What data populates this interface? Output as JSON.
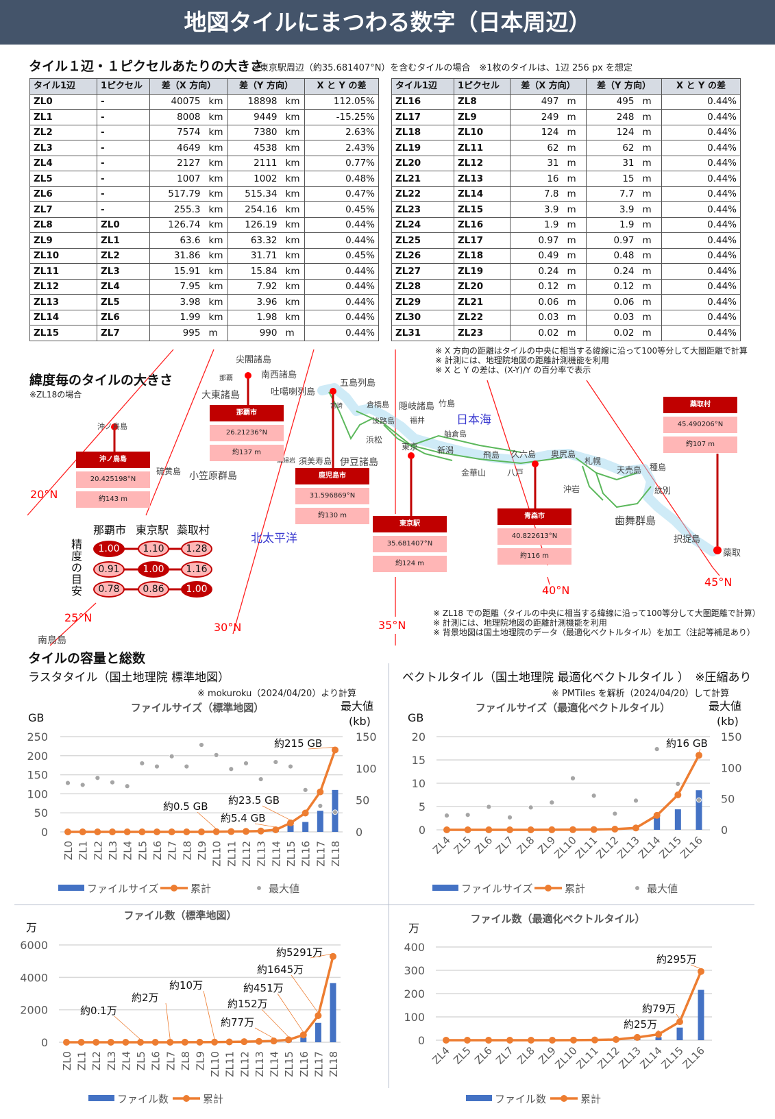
{
  "header": {
    "title": "地図タイルにまつわる数字（日本周辺）"
  },
  "tables": {
    "title": "タイル１辺・１ピクセルあたりの大きさ",
    "note": "※東京駅周辺（約35.681407°N）を含むタイルの場合　※1枚のタイルは、1辺 256 px を想定",
    "headers": [
      "タイル1辺",
      "1ピクセル",
      "差（X 方向）",
      "差（Y 方向）",
      "X と Y の差"
    ],
    "left_rows": [
      [
        "ZL0",
        "-",
        "40075",
        "km",
        "18898",
        "km",
        "112.05%"
      ],
      [
        "ZL1",
        "-",
        "8008",
        "km",
        "9449",
        "km",
        "-15.25%"
      ],
      [
        "ZL2",
        "-",
        "7574",
        "km",
        "7380",
        "km",
        "2.63%"
      ],
      [
        "ZL3",
        "-",
        "4649",
        "km",
        "4538",
        "km",
        "2.43%"
      ],
      [
        "ZL4",
        "-",
        "2127",
        "km",
        "2111",
        "km",
        "0.77%"
      ],
      [
        "ZL5",
        "-",
        "1007",
        "km",
        "1002",
        "km",
        "0.48%"
      ],
      [
        "ZL6",
        "-",
        "517.79",
        "km",
        "515.34",
        "km",
        "0.47%"
      ],
      [
        "ZL7",
        "-",
        "255.3",
        "km",
        "254.16",
        "km",
        "0.45%"
      ],
      [
        "ZL8",
        "ZL0",
        "126.74",
        "km",
        "126.19",
        "km",
        "0.44%"
      ],
      [
        "ZL9",
        "ZL1",
        "63.6",
        "km",
        "63.32",
        "km",
        "0.44%"
      ],
      [
        "ZL10",
        "ZL2",
        "31.86",
        "km",
        "31.71",
        "km",
        "0.45%"
      ],
      [
        "ZL11",
        "ZL3",
        "15.91",
        "km",
        "15.84",
        "km",
        "0.44%"
      ],
      [
        "ZL12",
        "ZL4",
        "7.95",
        "km",
        "7.92",
        "km",
        "0.44%"
      ],
      [
        "ZL13",
        "ZL5",
        "3.98",
        "km",
        "3.96",
        "km",
        "0.44%"
      ],
      [
        "ZL14",
        "ZL6",
        "1.99",
        "km",
        "1.98",
        "km",
        "0.44%"
      ],
      [
        "ZL15",
        "ZL7",
        "995",
        "m",
        "990",
        "m",
        "0.44%"
      ]
    ],
    "right_rows": [
      [
        "ZL16",
        "ZL8",
        "497",
        "m",
        "495",
        "m",
        "0.44%"
      ],
      [
        "ZL17",
        "ZL9",
        "249",
        "m",
        "248",
        "m",
        "0.44%"
      ],
      [
        "ZL18",
        "ZL10",
        "124",
        "m",
        "124",
        "m",
        "0.44%"
      ],
      [
        "ZL19",
        "ZL11",
        "62",
        "m",
        "62",
        "m",
        "0.44%"
      ],
      [
        "ZL20",
        "ZL12",
        "31",
        "m",
        "31",
        "m",
        "0.44%"
      ],
      [
        "ZL21",
        "ZL13",
        "16",
        "m",
        "15",
        "m",
        "0.44%"
      ],
      [
        "ZL22",
        "ZL14",
        "7.8",
        "m",
        "7.7",
        "m",
        "0.44%"
      ],
      [
        "ZL23",
        "ZL15",
        "3.9",
        "m",
        "3.9",
        "m",
        "0.44%"
      ],
      [
        "ZL24",
        "ZL16",
        "1.9",
        "m",
        "1.9",
        "m",
        "0.44%"
      ],
      [
        "ZL25",
        "ZL17",
        "0.97",
        "m",
        "0.97",
        "m",
        "0.44%"
      ],
      [
        "ZL26",
        "ZL18",
        "0.49",
        "m",
        "0.48",
        "m",
        "0.44%"
      ],
      [
        "ZL27",
        "ZL19",
        "0.24",
        "m",
        "0.24",
        "m",
        "0.44%"
      ],
      [
        "ZL28",
        "ZL20",
        "0.12",
        "m",
        "0.12",
        "m",
        "0.44%"
      ],
      [
        "ZL29",
        "ZL21",
        "0.06",
        "m",
        "0.06",
        "m",
        "0.44%"
      ],
      [
        "ZL30",
        "ZL22",
        "0.03",
        "m",
        "0.03",
        "m",
        "0.44%"
      ],
      [
        "ZL31",
        "ZL23",
        "0.02",
        "m",
        "0.02",
        "m",
        "0.44%"
      ]
    ],
    "notes": [
      "※ X 方向の距離はタイルの中央に相当する緯線に沿って100等分して大圏距離で計算",
      "※ 計測には、地理院地図の距離計測機能を利用",
      "※ X と Y の差は、(X-Y)/Y の百分率で表示"
    ]
  },
  "map": {
    "title": "緯度毎のタイルの大きさ",
    "note": "※ZL18の場合",
    "lat_labels": [
      "20°N",
      "25°N",
      "30°N",
      "35°N",
      "40°N",
      "45°N"
    ],
    "cities": [
      {
        "name": "沖ノ鳥島",
        "lat": "20.425198°N",
        "size": "約143 m"
      },
      {
        "name": "那覇市",
        "lat": "26.21236°N",
        "size": "約137 m"
      },
      {
        "name": "鹿児島市",
        "lat": "31.596869°N",
        "size": "約130 m"
      },
      {
        "name": "東京駅",
        "lat": "35.681407°N",
        "size": "約124 m"
      },
      {
        "name": "青森市",
        "lat": "40.822613°N",
        "size": "約116 m"
      },
      {
        "name": "蘂取村",
        "lat": "45.490206°N",
        "size": "約107 m"
      }
    ],
    "places": [
      "尖閣諸島",
      "那覇",
      "南西諸島",
      "大東諸島",
      "吐噶喇列島",
      "宮崎",
      "五島列島",
      "沖ノ鳥島",
      "硫黄島",
      "小笠原群島",
      "孀婦岩",
      "須美寿島",
      "伊豆諸島",
      "倉橋島",
      "隠岐諸島",
      "竹島",
      "淡路島",
      "福井",
      "舳倉島",
      "浜松",
      "東京",
      "新潟",
      "飛島",
      "久六島",
      "奥尻島",
      "札幌",
      "金華山",
      "八戸",
      "天売島",
      "種島",
      "沖岩",
      "紋別",
      "歯舞群島",
      "択捉島",
      "蘂取",
      "南鳥島"
    ],
    "seas": [
      "日本海",
      "北太平洋"
    ],
    "matrix": {
      "row_label": "精度の目安",
      "cols": [
        "那覇市",
        "東京駅",
        "蘂取村"
      ],
      "values": [
        [
          "1.00",
          "1.10",
          "1.28"
        ],
        [
          "0.91",
          "1.00",
          "1.16"
        ],
        [
          "0.78",
          "0.86",
          "1.00"
        ]
      ]
    },
    "notes": [
      "※ ZL18 での距離（タイルの中央に相当する緯線に沿って100等分して大圏距離で計算）",
      "※ 計測には、地理院地図の距離計測機能を利用",
      "※ 背景地図は国土地理院のデータ（最適化ベクトルタイル）を加工（注記等補足あり）"
    ]
  },
  "capacity": {
    "title": "タイルの容量と総数",
    "raster_subtitle": "ラスタタイル（国土地理院 標準地図）",
    "raster_note": "※ mokuroku（2024/04/20）より計算",
    "vector_subtitle": "ベクトルタイル（国土地理院 最適化ベクトルタイル ）　※圧縮あり",
    "vector_note": "※ PMTiles を解析（2024/04/20）して計算"
  },
  "colors": {
    "bar": "#4472c4",
    "cumulative": "#ed7d31",
    "max": "#a5a5a5",
    "accent": "#c00000",
    "header": "#44546a"
  },
  "chart_data": [
    {
      "type": "bar+line+scatter",
      "title": "ファイルサイズ（標準地図）",
      "ylabel": "GB",
      "y2label": "最大値 (kb)",
      "ylim": [
        0,
        250
      ],
      "y_ticks": [
        "0",
        "50",
        "100",
        "150",
        "200",
        "250"
      ],
      "y2lim": [
        0,
        150
      ],
      "y2_ticks": [
        "0",
        "50",
        "100",
        "150"
      ],
      "categories": [
        "ZL0",
        "ZL1",
        "ZL2",
        "ZL3",
        "ZL4",
        "ZL5",
        "ZL6",
        "ZL7",
        "ZL8",
        "ZL9",
        "ZL10",
        "ZL11",
        "ZL12",
        "ZL13",
        "ZL14",
        "ZL15",
        "ZL16",
        "ZL17",
        "ZL18"
      ],
      "series": [
        {
          "name": "ファイルサイズ",
          "kind": "bar",
          "axis": "left",
          "values": [
            0,
            0,
            0,
            0,
            0,
            0,
            0,
            0.01,
            0.02,
            0.07,
            0.4,
            0.3,
            0.5,
            0.9,
            3.2,
            18.1,
            26,
            55.5,
            110
          ]
        },
        {
          "name": "累計",
          "kind": "line",
          "axis": "left",
          "values": [
            0,
            0,
            0,
            0,
            0,
            0,
            0,
            0.01,
            0.03,
            0.1,
            0.5,
            0.8,
            1.3,
            2.2,
            5.4,
            23.5,
            49.5,
            105,
            215
          ]
        },
        {
          "name": "最大値",
          "kind": "scatter",
          "axis": "right",
          "values": [
            77,
            74,
            85,
            78,
            72,
            108,
            103,
            119,
            103,
            137,
            121,
            99,
            108,
            83,
            110,
            103,
            66,
            41,
            31
          ]
        }
      ],
      "annotations": [
        {
          "category": "ZL10",
          "text": "約0.5 GB"
        },
        {
          "category": "ZL14",
          "text": "約5.4 GB"
        },
        {
          "category": "ZL15",
          "text": "約23.5 GB"
        },
        {
          "category": "ZL18",
          "text": "約215 GB"
        }
      ],
      "grid": true,
      "legend": "bottom"
    },
    {
      "type": "bar+line+scatter",
      "title": "ファイルサイズ（最適化ベクトルタイル）",
      "ylabel": "GB",
      "y2label": "最大値 (kb)",
      "ylim": [
        0,
        20
      ],
      "y_ticks": [
        "0",
        "5",
        "10",
        "15",
        "20"
      ],
      "y2lim": [
        0,
        150
      ],
      "y2_ticks": [
        "0",
        "50",
        "100",
        "150"
      ],
      "categories": [
        "ZL4",
        "ZL5",
        "ZL6",
        "ZL7",
        "ZL8",
        "ZL9",
        "ZL10",
        "ZL11",
        "ZL12",
        "ZL13",
        "ZL14",
        "ZL15",
        "ZL16"
      ],
      "series": [
        {
          "name": "ファイルサイズ",
          "kind": "bar",
          "axis": "left",
          "values": [
            0,
            0,
            0,
            0,
            0,
            0.01,
            0.02,
            0.03,
            0.09,
            0.25,
            2.7,
            4.4,
            8.5
          ]
        },
        {
          "name": "累計",
          "kind": "line",
          "axis": "left",
          "values": [
            0,
            0,
            0,
            0,
            0,
            0.01,
            0.03,
            0.06,
            0.15,
            0.4,
            3.1,
            7.5,
            16
          ]
        },
        {
          "name": "最大値",
          "kind": "scatter",
          "axis": "right",
          "values": [
            23,
            24,
            37,
            20,
            36,
            44,
            83,
            55,
            26,
            47,
            130,
            74,
            48
          ]
        }
      ],
      "annotations": [
        {
          "category": "ZL16",
          "text": "約16 GB"
        }
      ],
      "grid": true,
      "legend": "bottom"
    },
    {
      "type": "bar+line",
      "title": "ファイル数（標準地図）",
      "ylabel": "万",
      "ylim": [
        0,
        6000
      ],
      "y_ticks": [
        "0",
        "2000",
        "4000",
        "6000"
      ],
      "categories": [
        "ZL0",
        "ZL1",
        "ZL2",
        "ZL3",
        "ZL4",
        "ZL5",
        "ZL6",
        "ZL7",
        "ZL8",
        "ZL9",
        "ZL10",
        "ZL11",
        "ZL12",
        "ZL13",
        "ZL14",
        "ZL15",
        "ZL16",
        "ZL17",
        "ZL18"
      ],
      "series": [
        {
          "name": "ファイル数",
          "kind": "bar",
          "axis": "left",
          "values": [
            0,
            0,
            0,
            0,
            0,
            0.1,
            0.4,
            1.5,
            2,
            2,
            4,
            10,
            15,
            20,
            22,
            75,
            299,
            1194,
            3646
          ]
        },
        {
          "name": "累計",
          "kind": "line",
          "axis": "left",
          "values": [
            0,
            0,
            0,
            0,
            0,
            0.1,
            0.5,
            2,
            4,
            6,
            10,
            20,
            35,
            55,
            77,
            152,
            451,
            1645,
            5291
          ]
        }
      ],
      "annotations": [
        {
          "category": "ZL5",
          "text": "約0.1万"
        },
        {
          "category": "ZL7",
          "text": "約2万"
        },
        {
          "category": "ZL10",
          "text": "約10万"
        },
        {
          "category": "ZL14",
          "text": "約77万"
        },
        {
          "category": "ZL15",
          "text": "約152万"
        },
        {
          "category": "ZL16",
          "text": "約451万"
        },
        {
          "category": "ZL17",
          "text": "約1645万"
        },
        {
          "category": "ZL18",
          "text": "約5291万"
        }
      ],
      "grid": true,
      "legend": "bottom"
    },
    {
      "type": "bar+line",
      "title": "ファイル数（最適化ベクトルタイル）",
      "ylabel": "万",
      "ylim": [
        0,
        400
      ],
      "y_ticks": [
        "0",
        "100",
        "200",
        "300",
        "400"
      ],
      "categories": [
        "ZL4",
        "ZL5",
        "ZL6",
        "ZL7",
        "ZL8",
        "ZL9",
        "ZL10",
        "ZL11",
        "ZL12",
        "ZL13",
        "ZL14",
        "ZL15",
        "ZL16"
      ],
      "series": [
        {
          "name": "ファイル数",
          "kind": "bar",
          "axis": "left",
          "values": [
            0,
            0,
            0,
            0,
            0,
            0,
            0.5,
            0.5,
            2,
            9,
            13,
            54,
            216
          ]
        },
        {
          "name": "累計",
          "kind": "line",
          "axis": "left",
          "values": [
            0,
            0,
            0,
            0,
            0,
            0,
            0.5,
            1,
            3,
            12,
            25,
            79,
            295
          ]
        }
      ],
      "annotations": [
        {
          "category": "ZL14",
          "text": "約25万"
        },
        {
          "category": "ZL15",
          "text": "約79万"
        },
        {
          "category": "ZL16",
          "text": "約295万"
        }
      ],
      "grid": true,
      "legend": "bottom"
    }
  ]
}
